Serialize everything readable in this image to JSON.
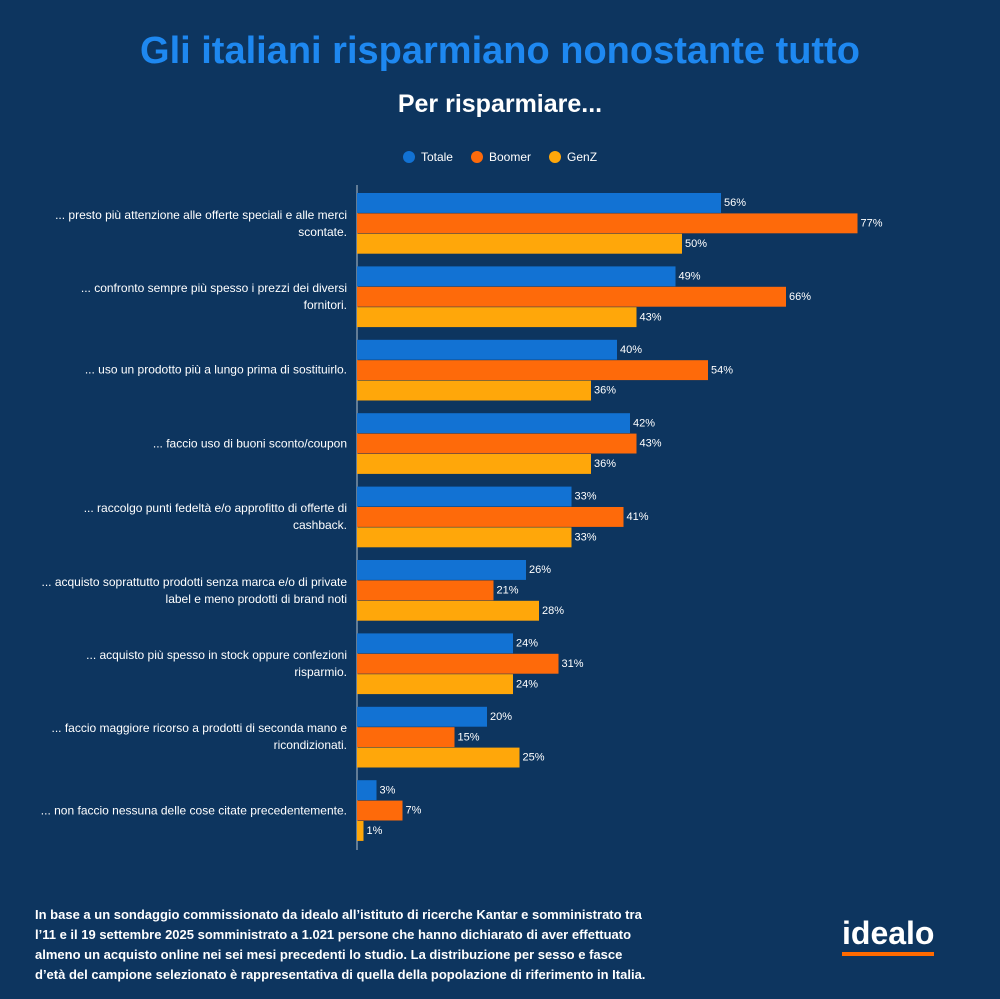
{
  "chart_data": {
    "type": "hbar",
    "title": "Gli italiani risparmiano nonostante tutto",
    "subtitle": "Per risparmiare...",
    "categories": [
      "... presto più attenzione alle offerte speciali e alle merci scontate.",
      "... confronto sempre più spesso i prezzi dei diversi fornitori.",
      "... uso un prodotto più a lungo prima di sostituirlo.",
      "... faccio uso di buoni sconto/coupon",
      "... raccolgo punti fedeltà e/o approfitto di offerte di cashback.",
      "... acquisto soprattutto prodotti senza marca e/o di private label e meno prodotti di brand noti",
      "... acquisto più spesso in stock oppure confezioni risparmio.",
      "... faccio maggiore ricorso a prodotti di seconda mano e ricondizionati.",
      "... non faccio nessuna delle cose citate precedentemente."
    ],
    "series": [
      {
        "name": "Totale",
        "color": "#1272d3",
        "values": [
          56,
          49,
          40,
          42,
          33,
          26,
          24,
          20,
          3
        ],
        "value_labels": [
          "56%",
          "49%",
          "40%",
          "42%",
          "33%",
          "26%",
          "24%",
          "20%",
          "3%"
        ]
      },
      {
        "name": "Boomer",
        "color": "#fe6a0a",
        "values": [
          77,
          66,
          54,
          43,
          41,
          21,
          31,
          15,
          7
        ],
        "value_labels": [
          "77%",
          "66%",
          "54%",
          "43%",
          "41%",
          "21%",
          "31%",
          "15%",
          "7%"
        ]
      },
      {
        "name": "GenZ",
        "color": "#ffa70a",
        "values": [
          50,
          43,
          36,
          36,
          33,
          28,
          24,
          25,
          1
        ],
        "value_labels": [
          "50%",
          "43%",
          "36%",
          "36%",
          "33%",
          "28%",
          "24%",
          "25%",
          "1%"
        ]
      }
    ],
    "legend": "top",
    "footnote": [
      "In base a un sondaggio commissionato da idealo all’istituto di ricerche Kantar e somministrato tra",
      "l’11 e il 19 settembre 2025 somministrato a 1.021 persone che hanno dichiarato di aver effettuato",
      "almeno un acquisto online nei sei mesi precedenti lo studio. La distribuzione per sesso e fasce",
      "d’età del campione selezionato è rappresentativa di quella della popolazione di riferimento in Italia."
    ],
    "logo": "idealo"
  }
}
